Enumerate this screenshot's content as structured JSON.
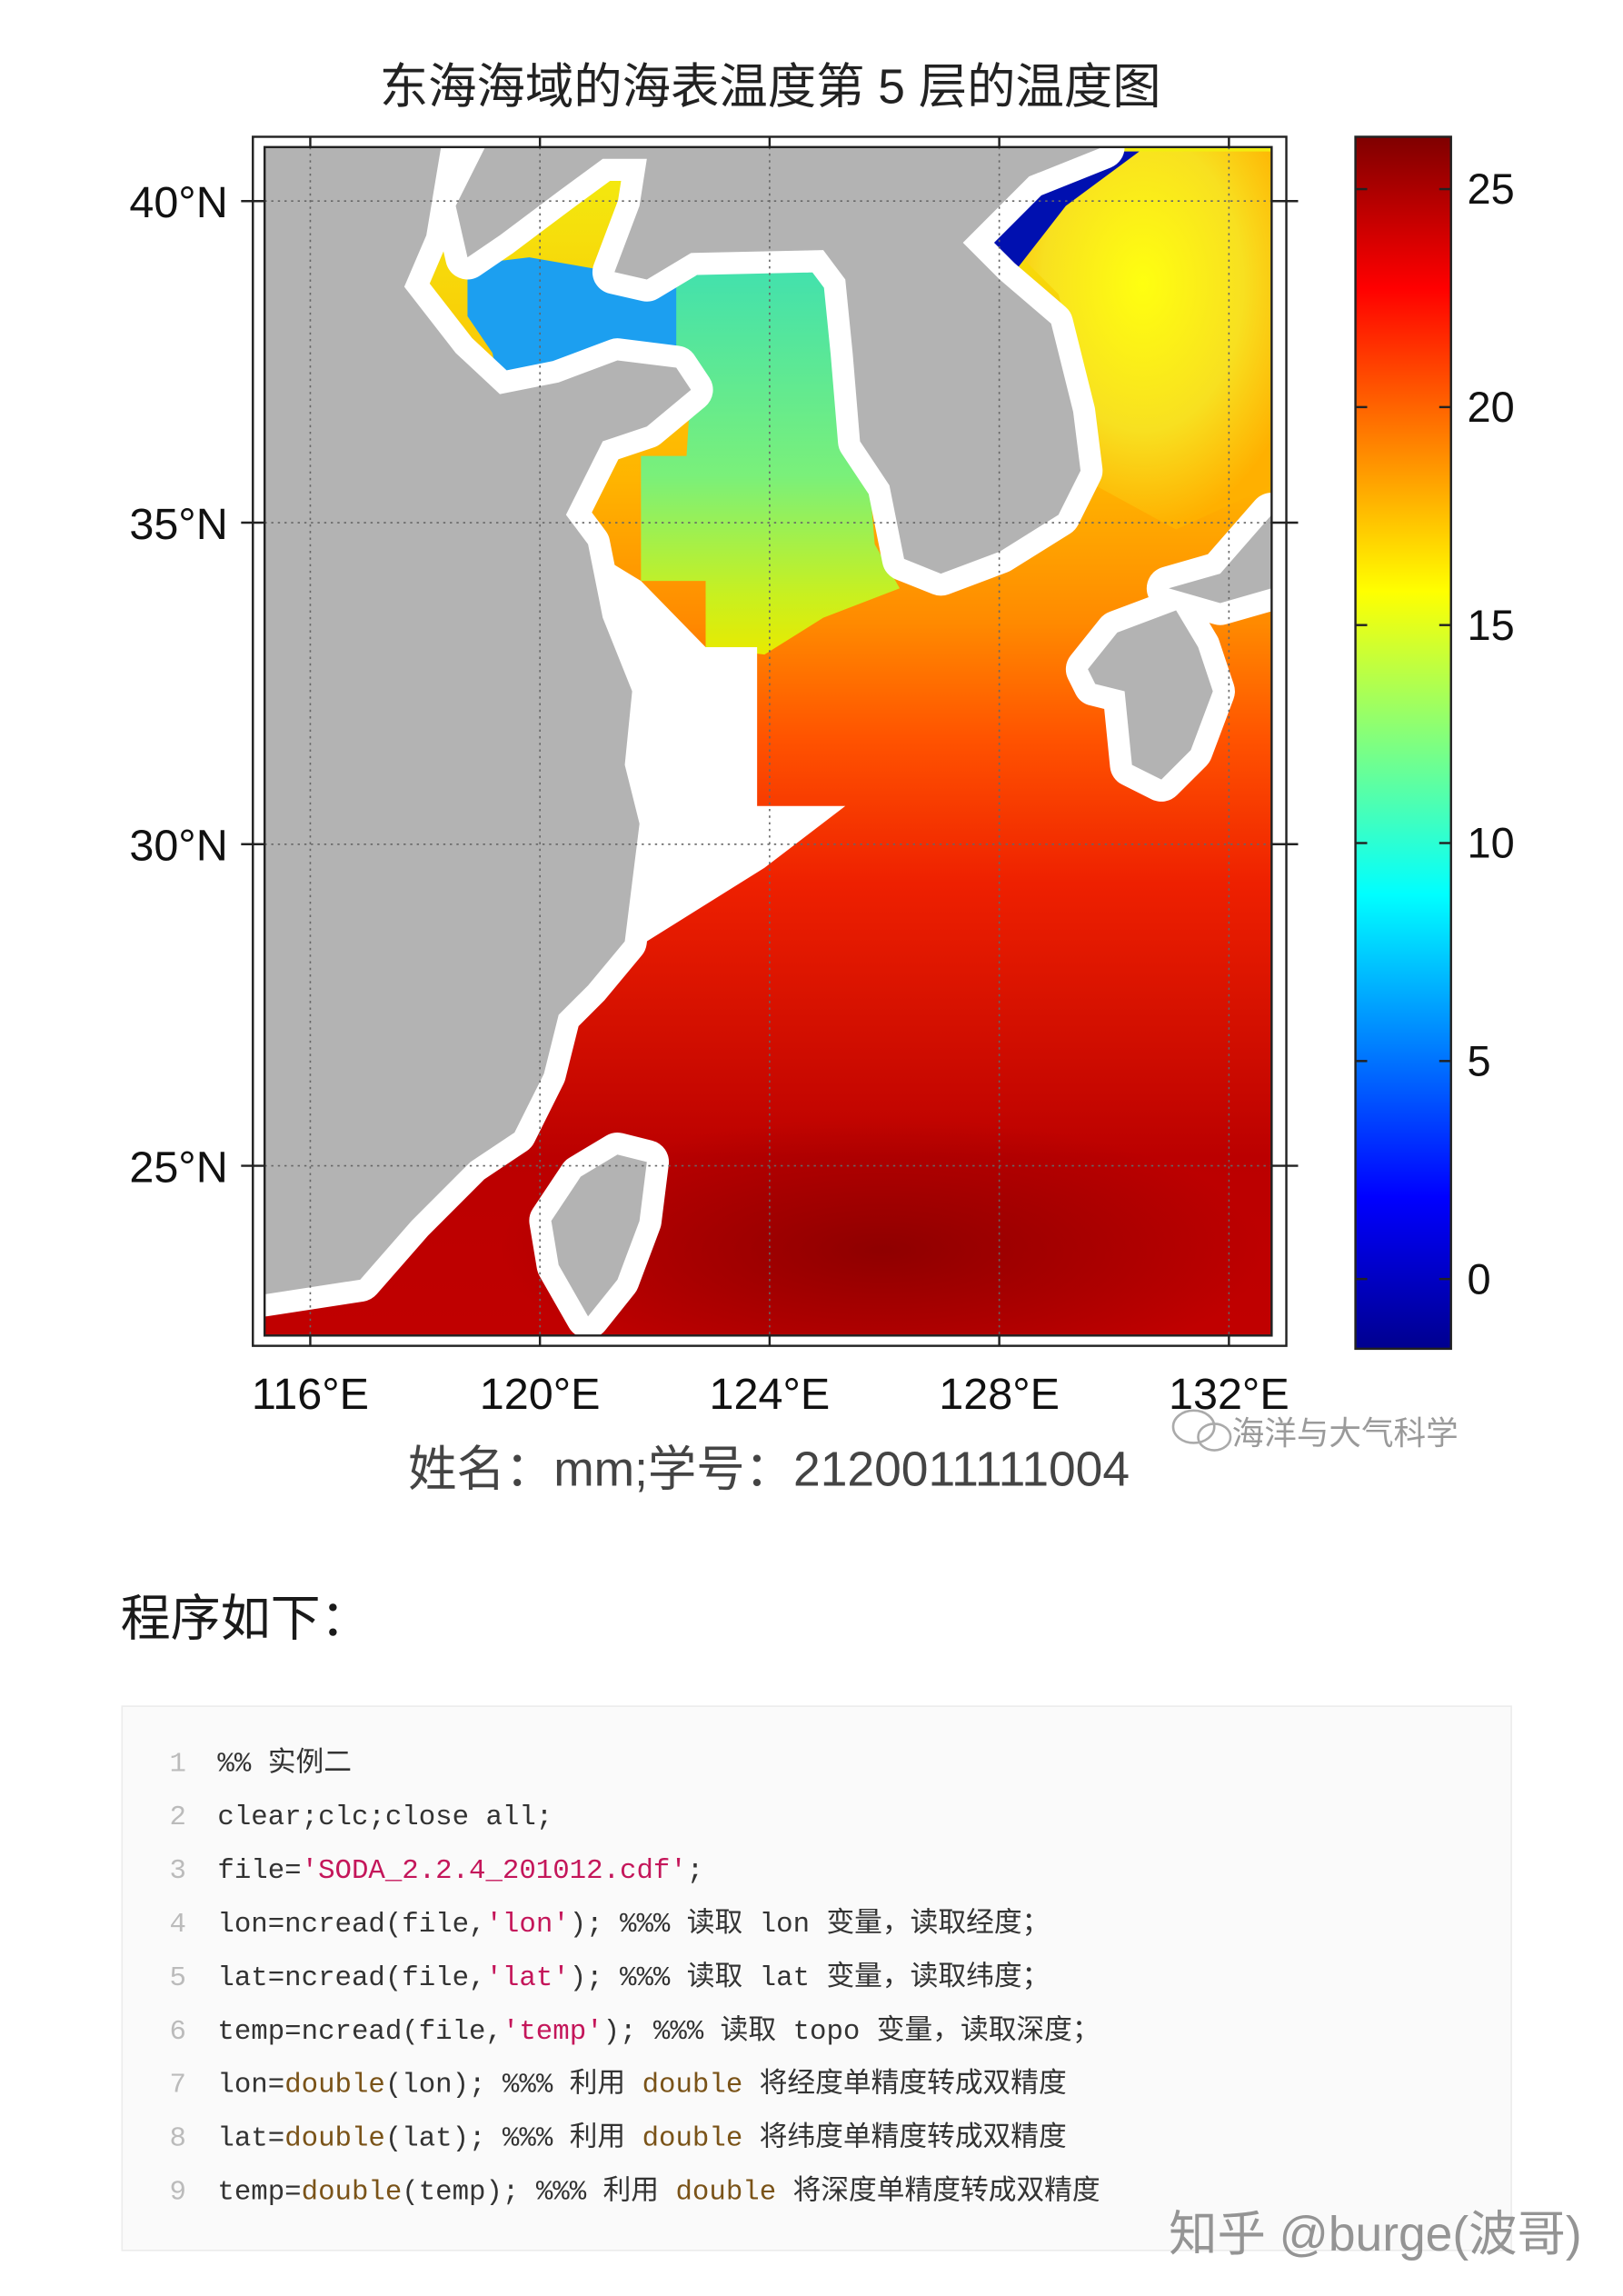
{
  "chart_data": {
    "type": "heatmap",
    "title": "东海海域的海表温度第 5 层的温度图",
    "xlabel": "姓名：mm;学号：2120011111004",
    "xlim": [
      115,
      133
    ],
    "xticks": [
      {
        "value": 116,
        "label": "116°E"
      },
      {
        "value": 120,
        "label": "120°E"
      },
      {
        "value": 124,
        "label": "124°E"
      },
      {
        "value": 128,
        "label": "128°E"
      },
      {
        "value": 132,
        "label": "132°E"
      }
    ],
    "ylim": [
      22.2,
      41
    ],
    "yticks": [
      {
        "value": 25,
        "label": "25°N"
      },
      {
        "value": 30,
        "label": "30°N"
      },
      {
        "value": 35,
        "label": "35°N"
      },
      {
        "value": 40,
        "label": "40°N"
      }
    ],
    "grid": true,
    "colormap": "jet",
    "clim": [
      -1.6,
      26.2
    ],
    "cticks": [
      0,
      5,
      10,
      15,
      20,
      25
    ]
  },
  "watermark": "海洋与大气科学",
  "heading": "程序如下：",
  "code": {
    "lines": [
      {
        "number": 1,
        "segments": [
          {
            "text": "%% 实例二",
            "kind": "plain"
          }
        ]
      },
      {
        "number": 2,
        "segments": [
          {
            "text": "clear;clc;close all;",
            "kind": "plain"
          }
        ]
      },
      {
        "number": 3,
        "segments": [
          {
            "text": "file=",
            "kind": "plain"
          },
          {
            "text": "'SODA_2.2.4_201012.cdf'",
            "kind": "string"
          },
          {
            "text": ";",
            "kind": "plain"
          }
        ]
      },
      {
        "number": 4,
        "segments": [
          {
            "text": "lon=ncread(file,",
            "kind": "plain"
          },
          {
            "text": "'lon'",
            "kind": "string"
          },
          {
            "text": "); %%% 读取 lon 变量，读取经度；",
            "kind": "plain"
          }
        ]
      },
      {
        "number": 5,
        "segments": [
          {
            "text": "lat=ncread(file,",
            "kind": "plain"
          },
          {
            "text": "'lat'",
            "kind": "string"
          },
          {
            "text": "); %%% 读取 lat 变量，读取纬度；",
            "kind": "plain"
          }
        ]
      },
      {
        "number": 6,
        "segments": [
          {
            "text": "temp=ncread(file,",
            "kind": "plain"
          },
          {
            "text": "'temp'",
            "kind": "string"
          },
          {
            "text": "); %%% 读取 topo 变量，读取深度；",
            "kind": "plain"
          }
        ]
      },
      {
        "number": 7,
        "segments": [
          {
            "text": "lon=",
            "kind": "plain"
          },
          {
            "text": "double",
            "kind": "func"
          },
          {
            "text": "(lon); %%% 利用 ",
            "kind": "plain"
          },
          {
            "text": "double",
            "kind": "func"
          },
          {
            "text": " 将经度单精度转成双精度",
            "kind": "plain"
          }
        ]
      },
      {
        "number": 8,
        "segments": [
          {
            "text": "lat=",
            "kind": "plain"
          },
          {
            "text": "double",
            "kind": "func"
          },
          {
            "text": "(lat); %%% 利用 ",
            "kind": "plain"
          },
          {
            "text": "double",
            "kind": "func"
          },
          {
            "text": " 将纬度单精度转成双精度",
            "kind": "plain"
          }
        ]
      },
      {
        "number": 9,
        "segments": [
          {
            "text": "temp=",
            "kind": "plain"
          },
          {
            "text": "double",
            "kind": "func"
          },
          {
            "text": "(temp); %%% 利用 ",
            "kind": "plain"
          },
          {
            "text": "double",
            "kind": "func"
          },
          {
            "text": " 将深度单精度转成双精度",
            "kind": "plain"
          }
        ]
      }
    ]
  },
  "footer": "知乎 @burge(波哥)"
}
